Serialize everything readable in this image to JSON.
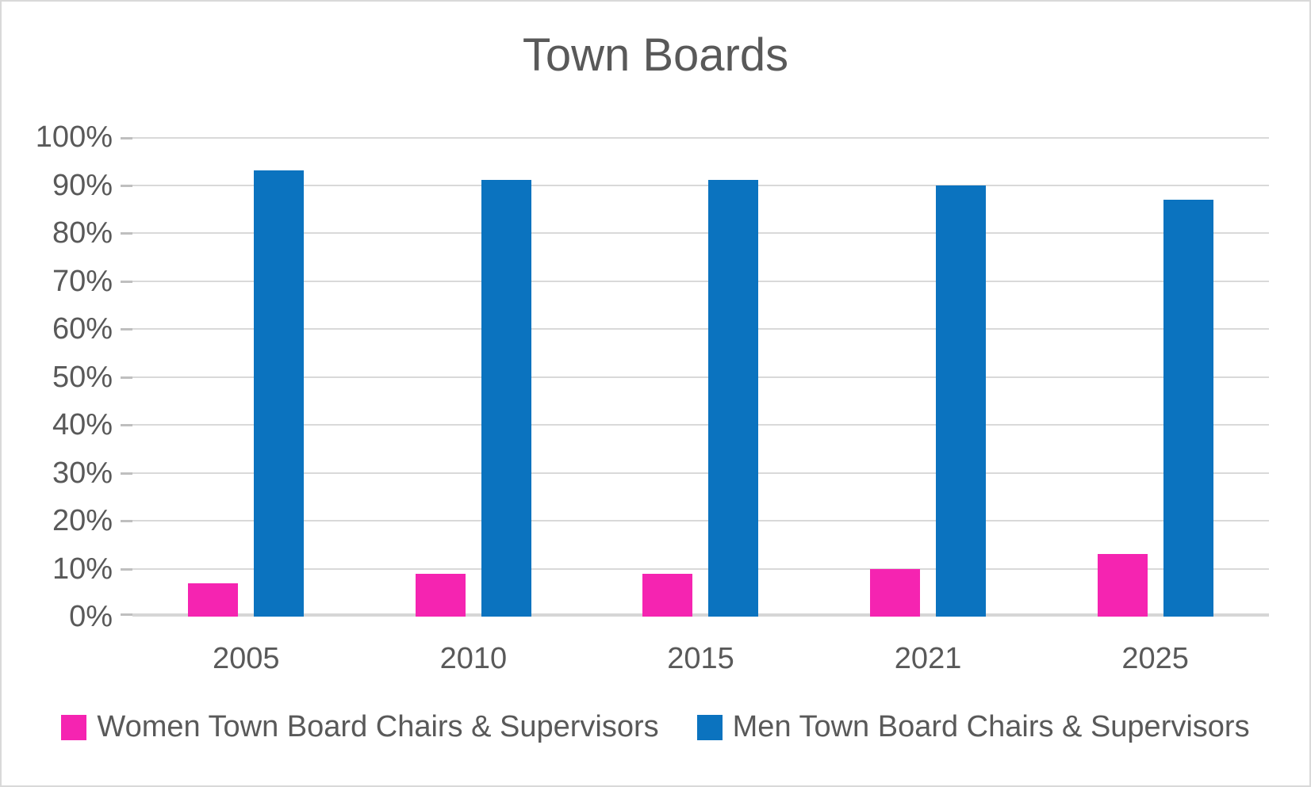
{
  "title": "Town Boards",
  "colors": {
    "women": "#F524B1",
    "men": "#0B73BF",
    "text": "#595959",
    "gridline": "#D9D9D9"
  },
  "chart_data": {
    "type": "bar",
    "title": "Town Boards",
    "categories": [
      "2005",
      "2010",
      "2015",
      "2021",
      "2025"
    ],
    "series": [
      {
        "name": "Women Town Board Chairs & Supervisors",
        "color": "#F524B1",
        "values": [
          7,
          9,
          9,
          10,
          13
        ]
      },
      {
        "name": "Men Town Board Chairs & Supervisors",
        "color": "#0B73BF",
        "values": [
          93,
          91,
          91,
          90,
          87
        ]
      }
    ],
    "xlabel": "",
    "ylabel": "",
    "ylim": [
      0,
      100
    ],
    "yticks": [
      "0%",
      "10%",
      "20%",
      "30%",
      "40%",
      "50%",
      "60%",
      "70%",
      "80%",
      "90%",
      "100%"
    ],
    "grid": true,
    "legend_position": "bottom"
  }
}
